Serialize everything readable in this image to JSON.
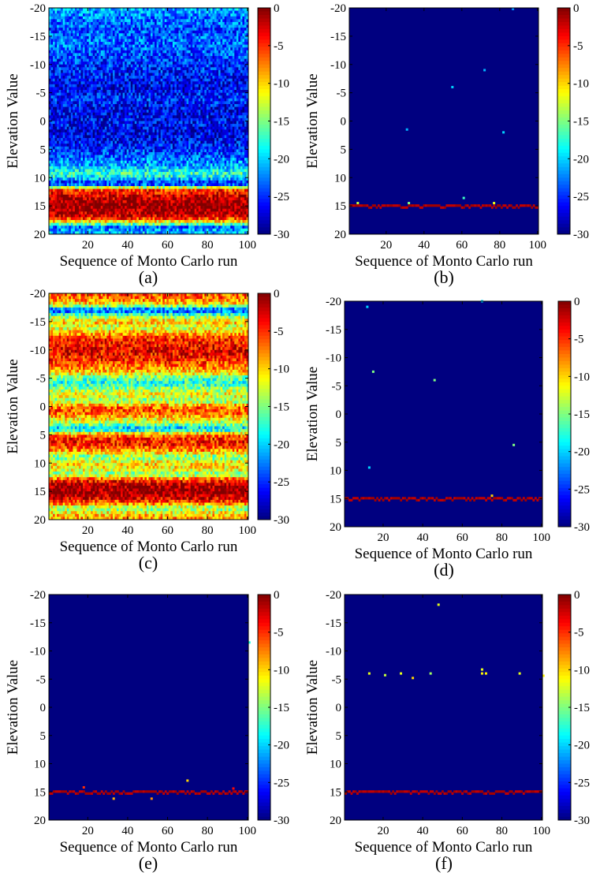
{
  "chart_data": [
    {
      "type": "heatmap",
      "panel_label": "(a)",
      "pattern": "noisy",
      "xlabel": "Sequence of Monto Carlo run",
      "ylabel": "Elevation Value",
      "xlim": [
        1,
        100
      ],
      "ylim": [
        -20,
        20
      ],
      "y_inverted": true,
      "xticks": [
        20,
        40,
        60,
        80,
        100
      ],
      "yticks": [
        -20,
        -15,
        -10,
        -5,
        0,
        5,
        10,
        15,
        20
      ],
      "colorbar": {
        "min": -30,
        "max": 0,
        "ticks": [
          0,
          -5,
          -10,
          -15,
          -20,
          -25,
          -30
        ],
        "colormap": "jet"
      },
      "peak_elevation": 15,
      "row_profile": [
        {
          "elevation": -20,
          "value": -21
        },
        {
          "elevation": -18,
          "value": -23
        },
        {
          "elevation": -16,
          "value": -24
        },
        {
          "elevation": -14,
          "value": -23
        },
        {
          "elevation": -12,
          "value": -24
        },
        {
          "elevation": -10,
          "value": -25
        },
        {
          "elevation": -8,
          "value": -26
        },
        {
          "elevation": -6,
          "value": -27
        },
        {
          "elevation": -4,
          "value": -25
        },
        {
          "elevation": -2,
          "value": -27
        },
        {
          "elevation": 0,
          "value": -26
        },
        {
          "elevation": 2,
          "value": -27
        },
        {
          "elevation": 4,
          "value": -26
        },
        {
          "elevation": 6,
          "value": -24
        },
        {
          "elevation": 8,
          "value": -21
        },
        {
          "elevation": 9.5,
          "value": -17
        },
        {
          "elevation": 10.5,
          "value": -22
        },
        {
          "elevation": 11,
          "value": -27
        },
        {
          "elevation": 11.5,
          "value": -20
        },
        {
          "elevation": 12,
          "value": -6
        },
        {
          "elevation": 13,
          "value": -3
        },
        {
          "elevation": 14,
          "value": -1
        },
        {
          "elevation": 15,
          "value": 0
        },
        {
          "elevation": 16,
          "value": -1
        },
        {
          "elevation": 17,
          "value": -3
        },
        {
          "elevation": 18,
          "value": -13
        },
        {
          "elevation": 18.8,
          "value": -24
        },
        {
          "elevation": 19.5,
          "value": -20
        },
        {
          "elevation": 20,
          "value": -22
        }
      ],
      "outliers": []
    },
    {
      "type": "heatmap",
      "panel_label": "(b)",
      "pattern": "sparse",
      "xlabel": "Sequence of Monto Carlo run",
      "ylabel": "Elevation Value",
      "xlim": [
        1,
        100
      ],
      "ylim": [
        -20,
        20
      ],
      "y_inverted": true,
      "xticks": [
        20,
        40,
        60,
        80,
        100
      ],
      "yticks": [
        -20,
        -15,
        -10,
        -5,
        0,
        5,
        10,
        15,
        20
      ],
      "colorbar": {
        "min": -30,
        "max": 0,
        "ticks": [
          0,
          -5,
          -10,
          -15,
          -20,
          -25,
          -30
        ],
        "colormap": "jet"
      },
      "peak_elevation": 15,
      "outliers": [
        {
          "x": 87,
          "y": -19.8,
          "value": -22
        },
        {
          "x": 72,
          "y": -9,
          "value": -21
        },
        {
          "x": 55,
          "y": -6,
          "value": -20
        },
        {
          "x": 31,
          "y": 1.5,
          "value": -21
        },
        {
          "x": 82,
          "y": 2,
          "value": -20
        },
        {
          "x": 61,
          "y": 13.6,
          "value": -17
        },
        {
          "x": 5,
          "y": 14.5,
          "value": -13
        },
        {
          "x": 32,
          "y": 14.5,
          "value": -15
        },
        {
          "x": 77,
          "y": 14.5,
          "value": -12
        }
      ]
    },
    {
      "type": "heatmap",
      "panel_label": "(c)",
      "pattern": "noisy",
      "xlabel": "Sequence of Monto Carlo run",
      "ylabel": "Elevation Value",
      "xlim": [
        1,
        100
      ],
      "ylim": [
        -20,
        20
      ],
      "y_inverted": true,
      "xticks": [
        20,
        40,
        60,
        80,
        100
      ],
      "yticks": [
        -20,
        -15,
        -10,
        -5,
        0,
        5,
        10,
        15,
        20
      ],
      "colorbar": {
        "min": -30,
        "max": 0,
        "ticks": [
          0,
          -5,
          -10,
          -15,
          -20,
          -25,
          -30
        ],
        "colormap": "jet"
      },
      "peak_elevation": 15,
      "row_profile": [
        {
          "elevation": -20,
          "value": -6
        },
        {
          "elevation": -19,
          "value": -7
        },
        {
          "elevation": -18,
          "value": -11
        },
        {
          "elevation": -17,
          "value": -25
        },
        {
          "elevation": -16,
          "value": -15
        },
        {
          "elevation": -15,
          "value": -9
        },
        {
          "elevation": -14,
          "value": -13
        },
        {
          "elevation": -12,
          "value": -5
        },
        {
          "elevation": -10,
          "value": -3
        },
        {
          "elevation": -8,
          "value": -5
        },
        {
          "elevation": -6,
          "value": -10
        },
        {
          "elevation": -5,
          "value": -16
        },
        {
          "elevation": -4,
          "value": -18
        },
        {
          "elevation": -3,
          "value": -14
        },
        {
          "elevation": -2,
          "value": -11
        },
        {
          "elevation": -1,
          "value": -15
        },
        {
          "elevation": 0,
          "value": -7
        },
        {
          "elevation": 1,
          "value": -6
        },
        {
          "elevation": 2,
          "value": -10
        },
        {
          "elevation": 3,
          "value": -14
        },
        {
          "elevation": 4,
          "value": -21
        },
        {
          "elevation": 5,
          "value": -7
        },
        {
          "elevation": 6,
          "value": -4
        },
        {
          "elevation": 7,
          "value": -5
        },
        {
          "elevation": 8,
          "value": -9
        },
        {
          "elevation": 9,
          "value": -16
        },
        {
          "elevation": 10,
          "value": -10
        },
        {
          "elevation": 11,
          "value": -11
        },
        {
          "elevation": 12,
          "value": -15
        },
        {
          "elevation": 13,
          "value": -5
        },
        {
          "elevation": 14,
          "value": -1
        },
        {
          "elevation": 15,
          "value": 0
        },
        {
          "elevation": 16,
          "value": -2
        },
        {
          "elevation": 17,
          "value": -6
        },
        {
          "elevation": 18,
          "value": -15
        },
        {
          "elevation": 19,
          "value": -10
        },
        {
          "elevation": 20,
          "value": -8
        }
      ],
      "outliers": []
    },
    {
      "type": "heatmap",
      "panel_label": "(d)",
      "pattern": "sparse",
      "xlabel": "Sequence of Monto Carlo run",
      "ylabel": "Elevation Value",
      "xlim": [
        1,
        100
      ],
      "ylim": [
        -20,
        20
      ],
      "y_inverted": true,
      "xticks": [
        20,
        40,
        60,
        80,
        100
      ],
      "yticks": [
        -20,
        -15,
        -10,
        -5,
        0,
        5,
        10,
        15,
        20
      ],
      "colorbar": {
        "min": -30,
        "max": 0,
        "ticks": [
          0,
          -5,
          -10,
          -15,
          -20,
          -25,
          -30
        ],
        "colormap": "jet"
      },
      "peak_elevation": 15,
      "outliers": [
        {
          "x": 70,
          "y": -20,
          "value": -20
        },
        {
          "x": 12,
          "y": -19,
          "value": -20
        },
        {
          "x": 15,
          "y": -7.5,
          "value": -15
        },
        {
          "x": 46,
          "y": -6,
          "value": -15
        },
        {
          "x": 86,
          "y": 5.5,
          "value": -15
        },
        {
          "x": 13,
          "y": 9.5,
          "value": -20
        },
        {
          "x": 75,
          "y": 14.5,
          "value": -10
        }
      ]
    },
    {
      "type": "heatmap",
      "panel_label": "(e)",
      "pattern": "sparse",
      "xlabel": "Sequence of Monto Carlo run",
      "ylabel": "Elevation Value",
      "xlim": [
        1,
        100
      ],
      "ylim": [
        -20,
        20
      ],
      "y_inverted": true,
      "xticks": [
        20,
        40,
        60,
        80,
        100
      ],
      "yticks": [
        -20,
        -15,
        -10,
        -5,
        0,
        5,
        10,
        15,
        20
      ],
      "colorbar": {
        "min": -30,
        "max": 0,
        "ticks": [
          0,
          -5,
          -10,
          -15,
          -20,
          -25,
          -30
        ],
        "colormap": "jet"
      },
      "peak_elevation": 15,
      "outliers": [
        {
          "x": 101,
          "y": -11.5,
          "value": -18
        },
        {
          "x": 70,
          "y": 13,
          "value": -10
        },
        {
          "x": 18,
          "y": 14.2,
          "value": -5
        },
        {
          "x": 93,
          "y": 14.4,
          "value": -4
        },
        {
          "x": 33,
          "y": 16.2,
          "value": -9
        },
        {
          "x": 52,
          "y": 16.2,
          "value": -8
        }
      ]
    },
    {
      "type": "heatmap",
      "panel_label": "(f)",
      "pattern": "sparse",
      "xlabel": "Sequence of Monto Carlo run",
      "ylabel": "Elevation Value",
      "xlim": [
        1,
        100
      ],
      "ylim": [
        -20,
        20
      ],
      "y_inverted": true,
      "xticks": [
        20,
        40,
        60,
        80,
        100
      ],
      "yticks": [
        -20,
        -15,
        -10,
        -5,
        0,
        5,
        10,
        15,
        20
      ],
      "colorbar": {
        "min": -30,
        "max": 0,
        "ticks": [
          0,
          -5,
          -10,
          -15,
          -20,
          -25,
          -30
        ],
        "colormap": "jet"
      },
      "peak_elevation": 15,
      "outliers": [
        {
          "x": 48,
          "y": -18.2,
          "value": -12
        },
        {
          "x": 13,
          "y": -6,
          "value": -12
        },
        {
          "x": 21,
          "y": -5.7,
          "value": -13
        },
        {
          "x": 29,
          "y": -6,
          "value": -12
        },
        {
          "x": 35,
          "y": -5.2,
          "value": -10
        },
        {
          "x": 44,
          "y": -6,
          "value": -14
        },
        {
          "x": 70,
          "y": -6.7,
          "value": -12
        },
        {
          "x": 70,
          "y": -6,
          "value": -11
        },
        {
          "x": 72,
          "y": -6,
          "value": -11
        },
        {
          "x": 89,
          "y": -6,
          "value": -12
        },
        {
          "x": 101,
          "y": -5.6,
          "value": -11
        }
      ]
    }
  ]
}
